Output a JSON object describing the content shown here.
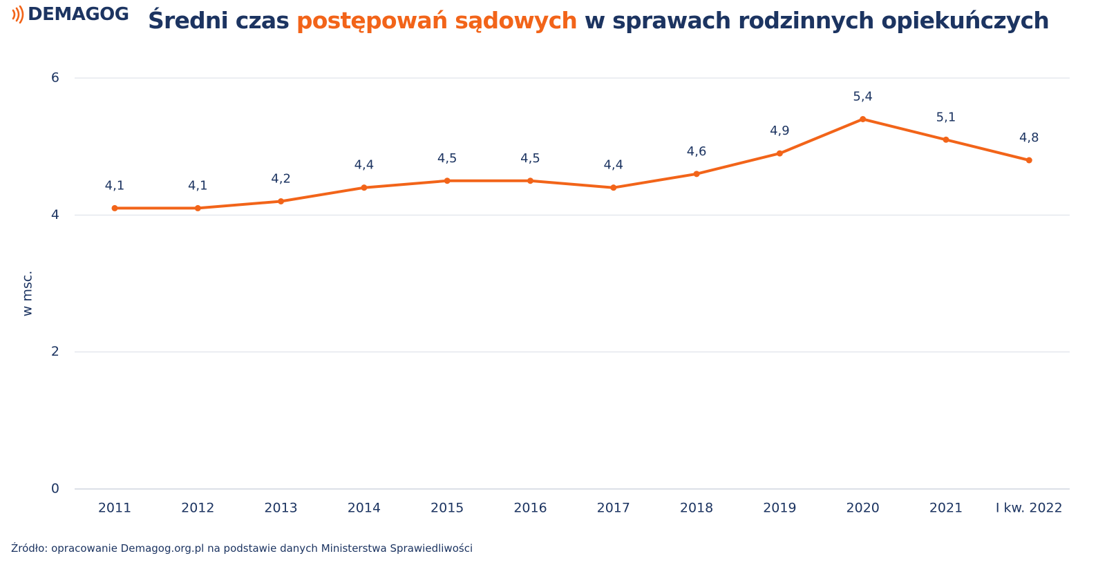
{
  "logo": {
    "text": "DEMAGOG"
  },
  "title": {
    "part1": "Średni czas ",
    "accent": "postępowań sądowych",
    "part2": " w sprawach rodzinnych opiekuńczych"
  },
  "source": "Źródło: opracowanie Demagog.org.pl na podstawie danych Ministerstwa Sprawiedliwości",
  "colors": {
    "line": "#f26419",
    "text": "#1c3461",
    "grid": "#d9dde6",
    "accent": "#f26419"
  },
  "chart_data": {
    "type": "line",
    "categories": [
      "2011",
      "2012",
      "2013",
      "2014",
      "2015",
      "2016",
      "2017",
      "2018",
      "2019",
      "2020",
      "2021",
      "I kw. 2022"
    ],
    "series": [
      {
        "values": [
          4.1,
          4.1,
          4.2,
          4.4,
          4.5,
          4.5,
          4.4,
          4.6,
          4.9,
          5.4,
          5.1,
          4.8
        ]
      }
    ],
    "data_labels": [
      "4,1",
      "4,1",
      "4,2",
      "4,4",
      "4,5",
      "4,5",
      "4,4",
      "4,6",
      "4,9",
      "5,4",
      "5,1",
      "4,8"
    ],
    "yticks": [
      0,
      2,
      4,
      6
    ],
    "ylim": [
      0,
      6
    ],
    "ylabel": "w msc.",
    "xlabel": "",
    "grid": true
  }
}
